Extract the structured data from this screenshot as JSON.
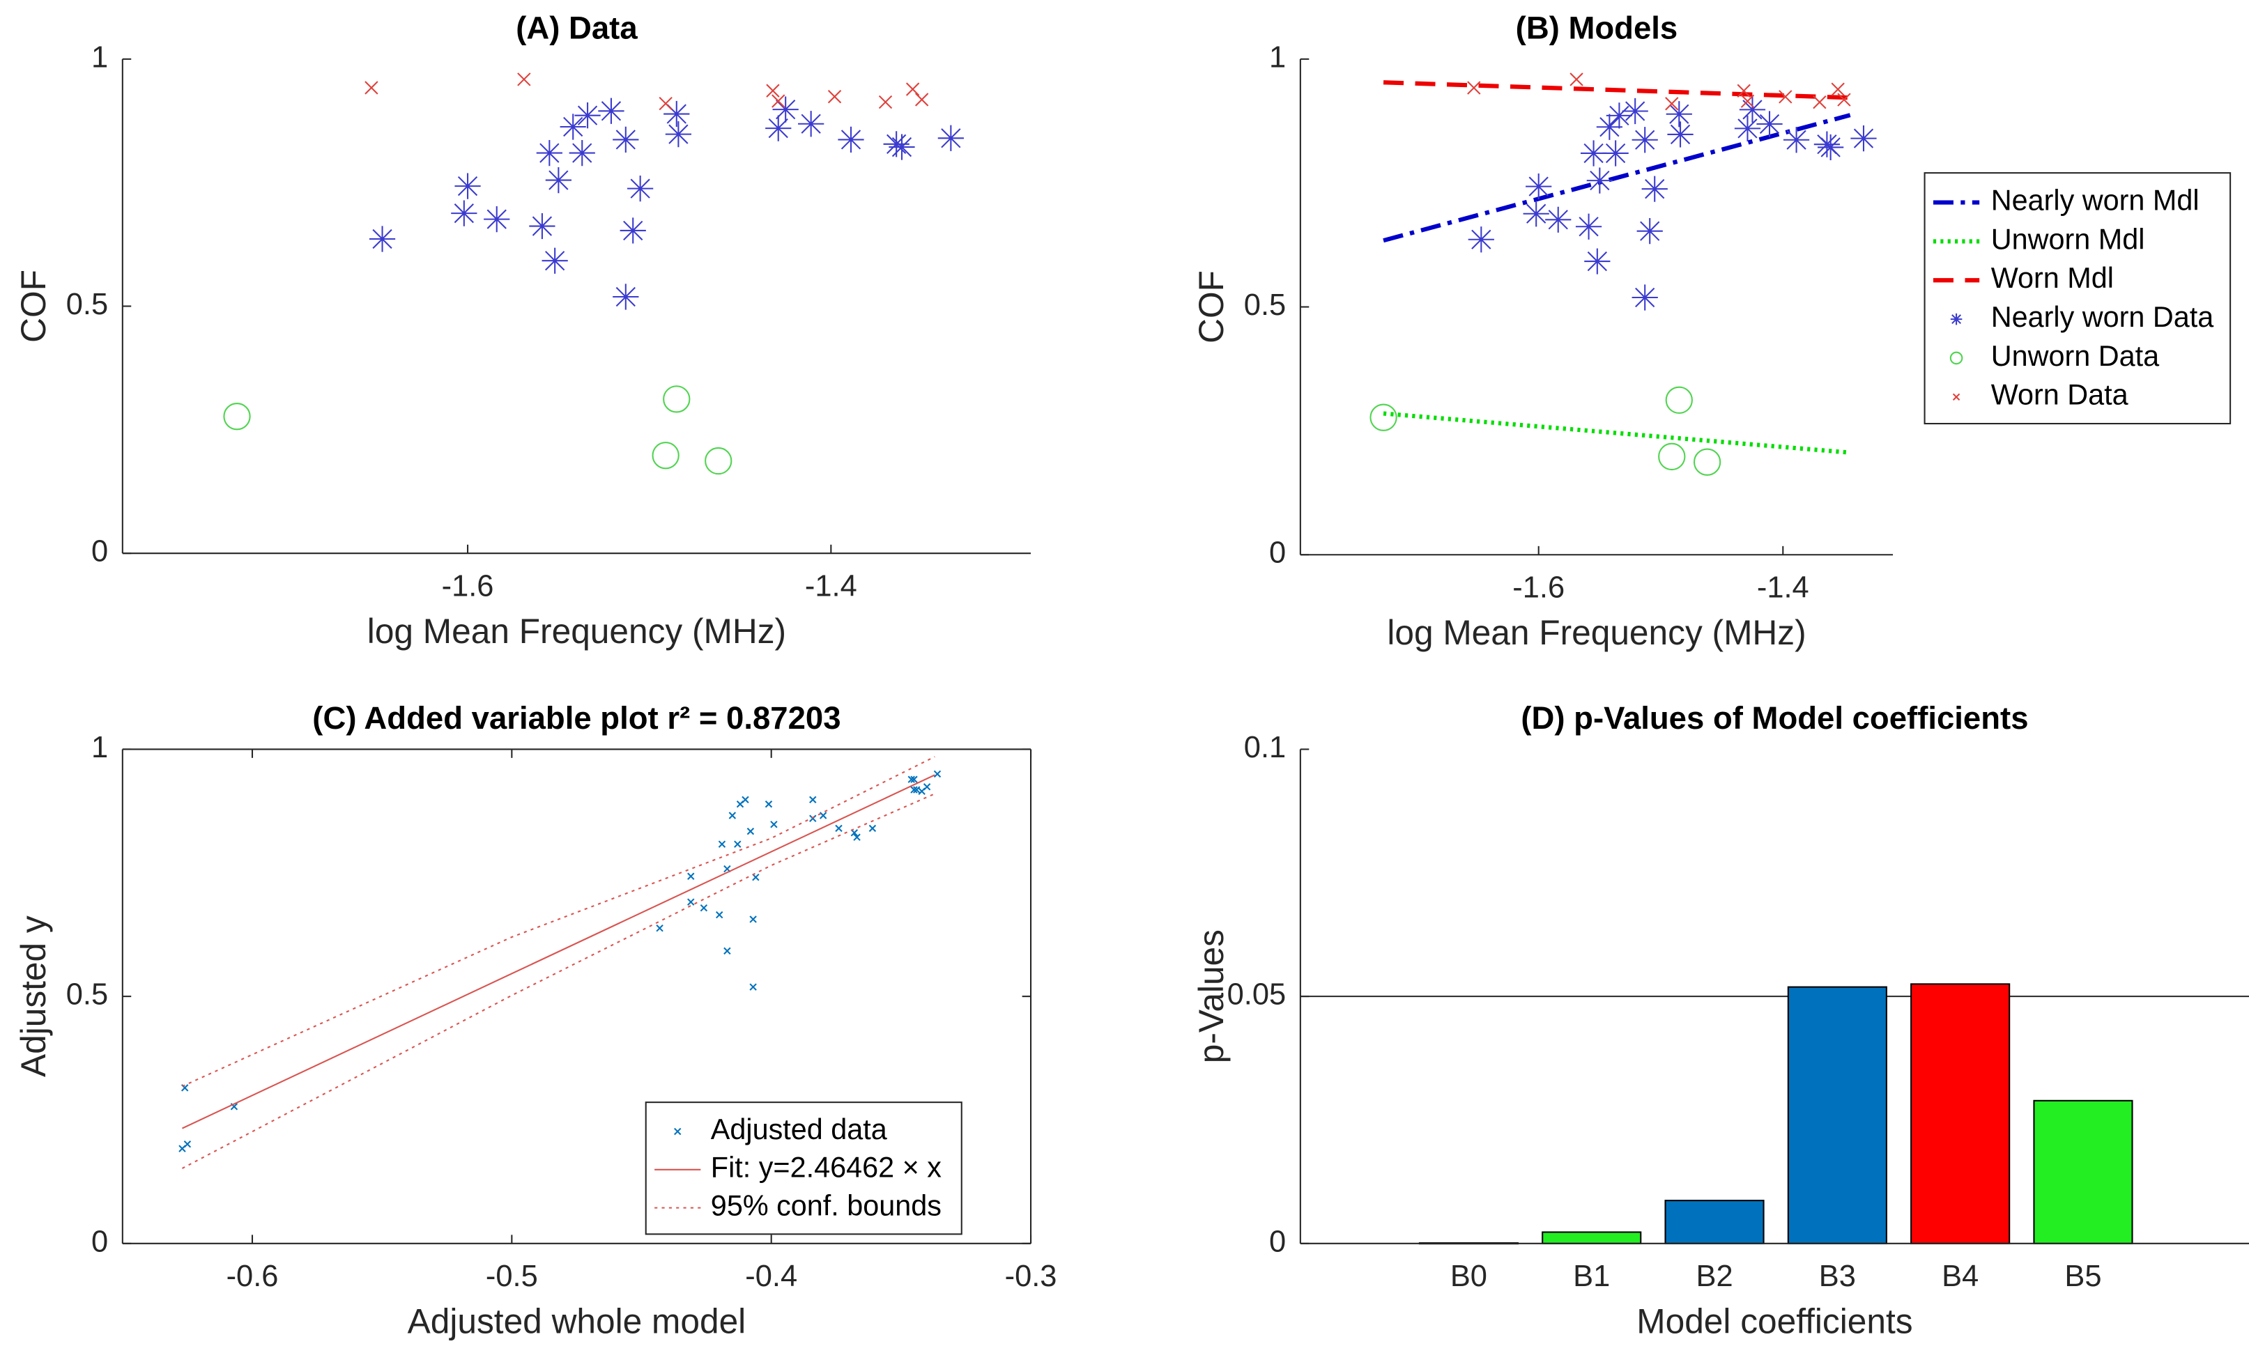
{
  "chart_data": [
    {
      "type": "scatter",
      "title": "(A) Data",
      "xlabel": "log Mean Frequency (MHz)",
      "ylabel": "COF",
      "xlim": [
        -1.79,
        -1.29
      ],
      "xticks": [
        -1.6,
        -1.4
      ],
      "ylim": [
        0,
        1
      ],
      "yticks": [
        0,
        0.5,
        1
      ],
      "series": [
        {
          "color": "#3b3bcf",
          "marker": "asterisk",
          "x": [
            -1.647,
            -1.6,
            -1.602,
            -1.584,
            -1.559,
            -1.552,
            -1.555,
            -1.55,
            -1.542,
            -1.537,
            -1.534,
            -1.521,
            -1.513,
            -1.505,
            -1.509,
            -1.513,
            -1.485,
            -1.484,
            -1.429,
            -1.425,
            -1.411,
            -1.389,
            -1.364,
            -1.361,
            -1.334
          ],
          "y": [
            0.636,
            0.743,
            0.688,
            0.676,
            0.662,
            0.592,
            0.81,
            0.755,
            0.863,
            0.81,
            0.886,
            0.895,
            0.837,
            0.738,
            0.653,
            0.519,
            0.889,
            0.848,
            0.86,
            0.898,
            0.869,
            0.837,
            0.828,
            0.822,
            0.84
          ]
        },
        {
          "color": "#4fd44f",
          "marker": "circle",
          "x": [
            -1.727,
            -1.485,
            -1.491,
            -1.462
          ],
          "y": [
            0.277,
            0.312,
            0.198,
            0.187
          ]
        },
        {
          "color": "#e0403a",
          "marker": "x",
          "x": [
            -1.653,
            -1.569,
            -1.491,
            -1.432,
            -1.429,
            -1.398,
            -1.37,
            -1.355,
            -1.35
          ],
          "y": [
            0.942,
            0.959,
            0.91,
            0.936,
            0.915,
            0.924,
            0.913,
            0.939,
            0.918
          ]
        }
      ]
    },
    {
      "type": "scatter",
      "title": "(B) Models",
      "xlabel": "log Mean Frequency (MHz)",
      "ylabel": "COF",
      "xlim": [
        -1.795,
        -1.31
      ],
      "xticks": [
        -1.6,
        -1.4
      ],
      "ylim": [
        0,
        1
      ],
      "yticks": [
        0,
        0.5,
        1
      ],
      "legend": "outside-right",
      "series": [
        {
          "name": "Nearly worn Mdl",
          "color": "#0000cc",
          "line_style": "dashdot",
          "x": [
            -1.727,
            -1.345
          ],
          "y": [
            0.634,
            0.887
          ]
        },
        {
          "name": "Unworn Mdl",
          "color": "#00dd00",
          "line_style": "dotted",
          "x": [
            -1.727,
            -1.345
          ],
          "y": [
            0.285,
            0.206
          ]
        },
        {
          "name": "Worn Mdl",
          "color": "#ee0000",
          "line_style": "dashed",
          "x": [
            -1.727,
            -1.345
          ],
          "y": [
            0.953,
            0.922
          ]
        },
        {
          "name": "Nearly worn Data",
          "color": "#3b3bcf",
          "marker": "asterisk",
          "x": [
            -1.647,
            -1.6,
            -1.602,
            -1.584,
            -1.559,
            -1.552,
            -1.555,
            -1.55,
            -1.542,
            -1.537,
            -1.534,
            -1.521,
            -1.513,
            -1.505,
            -1.509,
            -1.513,
            -1.485,
            -1.484,
            -1.429,
            -1.425,
            -1.411,
            -1.389,
            -1.364,
            -1.361,
            -1.334
          ],
          "y": [
            0.636,
            0.743,
            0.688,
            0.676,
            0.662,
            0.592,
            0.81,
            0.755,
            0.863,
            0.81,
            0.886,
            0.895,
            0.837,
            0.738,
            0.653,
            0.519,
            0.889,
            0.848,
            0.86,
            0.898,
            0.869,
            0.837,
            0.828,
            0.822,
            0.84
          ]
        },
        {
          "name": "Unworn Data",
          "color": "#4fd44f",
          "marker": "circle",
          "x": [
            -1.727,
            -1.485,
            -1.491,
            -1.462
          ],
          "y": [
            0.277,
            0.312,
            0.198,
            0.187
          ]
        },
        {
          "name": "Worn Data",
          "color": "#e0403a",
          "marker": "x",
          "x": [
            -1.653,
            -1.569,
            -1.491,
            -1.432,
            -1.429,
            -1.398,
            -1.37,
            -1.355,
            -1.35
          ],
          "y": [
            0.942,
            0.959,
            0.91,
            0.936,
            0.915,
            0.924,
            0.913,
            0.939,
            0.918
          ]
        }
      ]
    },
    {
      "type": "scatter",
      "title": "(C) Added variable plot r² = 0.87203",
      "xlabel": "Adjusted whole model",
      "ylabel": "Adjusted y",
      "xlim": [
        -0.65,
        -0.3
      ],
      "xticks": [
        -0.6,
        -0.5,
        -0.4,
        -0.3
      ],
      "ylim": [
        0,
        1
      ],
      "yticks": [
        0,
        0.5,
        1
      ],
      "box": true,
      "legend": "lower-right",
      "series": [
        {
          "name": "Adjusted data",
          "color": "#0072bd",
          "marker": "small-x",
          "x": [
            -0.626,
            -0.607,
            -0.627,
            -0.625,
            -0.443,
            -0.431,
            -0.431,
            -0.426,
            -0.42,
            -0.419,
            -0.417,
            -0.417,
            -0.415,
            -0.413,
            -0.412,
            -0.41,
            -0.408,
            -0.407,
            -0.407,
            -0.406,
            -0.401,
            -0.399,
            -0.384,
            -0.384,
            -0.38,
            -0.374,
            -0.368,
            -0.367,
            -0.361,
            -0.346,
            -0.345,
            -0.345,
            -0.344,
            -0.342,
            -0.34,
            -0.336
          ],
          "y": [
            0.315,
            0.277,
            0.192,
            0.201,
            0.638,
            0.743,
            0.691,
            0.679,
            0.665,
            0.808,
            0.758,
            0.592,
            0.866,
            0.808,
            0.889,
            0.898,
            0.834,
            0.656,
            0.519,
            0.741,
            0.889,
            0.848,
            0.86,
            0.898,
            0.866,
            0.84,
            0.831,
            0.822,
            0.84,
            0.939,
            0.918,
            0.939,
            0.918,
            0.915,
            0.924,
            0.95
          ]
        },
        {
          "name": "Fit: y=2.46462 × x",
          "color": "#d9534f",
          "line_style": "solid",
          "x": [
            -0.627,
            -0.337
          ],
          "y": [
            0.233,
            0.948
          ]
        },
        {
          "name": "95% conf. bounds",
          "color": "#d9534f",
          "line_style": "dotted",
          "x": [
            -0.627,
            -0.5,
            -0.4,
            -0.337
          ],
          "lower": [
            0.152,
            0.502,
            0.765,
            0.91
          ],
          "upper": [
            0.318,
            0.62,
            0.82,
            0.985
          ]
        }
      ]
    },
    {
      "type": "bar",
      "title": "(D) p-Values of Model coefficients",
      "xlabel": "Model coefficients",
      "ylabel": "p-Values",
      "categories": [
        "B0",
        "B1",
        "B2",
        "B3",
        "B4",
        "B5"
      ],
      "values": [
        0.0001,
        0.0023,
        0.0087,
        0.0519,
        0.0525,
        0.0289
      ],
      "colors": [
        "#0072bd",
        "#22ee22",
        "#0072bd",
        "#0072bd",
        "#ff0000",
        "#22ee22"
      ],
      "ylim": [
        0,
        0.1
      ],
      "yticks": [
        0,
        0.05,
        0.1
      ],
      "reference_line": 0.05
    }
  ]
}
